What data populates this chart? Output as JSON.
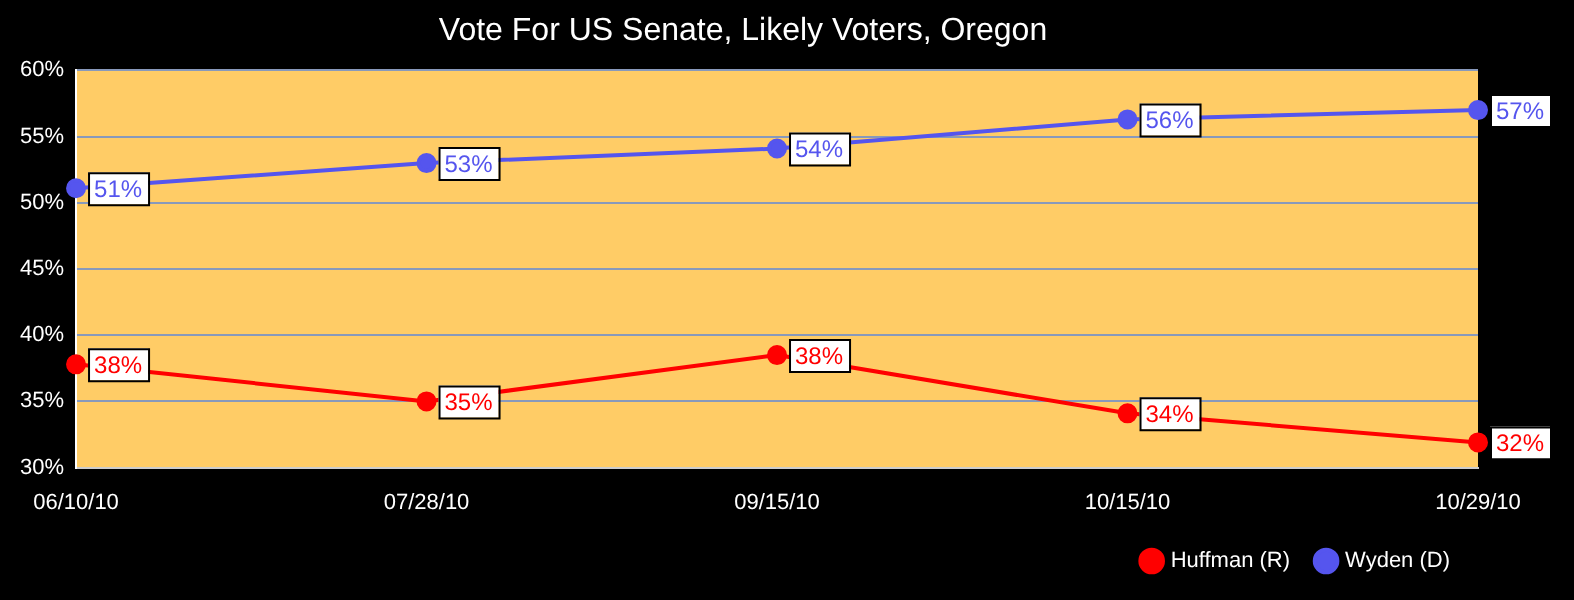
{
  "chart_data": {
    "type": "line",
    "title": "Vote For US Senate, Likely Voters, Oregon",
    "categories": [
      "06/10/10",
      "07/28/10",
      "09/15/10",
      "10/15/10",
      "10/29/10"
    ],
    "series": [
      {
        "name": "Huffman (R)",
        "color": "#ff0000",
        "values": [
          37.8,
          35.0,
          38.5,
          34.1,
          31.9
        ],
        "value_labels": [
          "38%",
          "35%",
          "38%",
          "34%",
          "32%"
        ]
      },
      {
        "name": "Wyden (D)",
        "color": "#5555ee",
        "values": [
          51.1,
          53.0,
          54.1,
          56.3,
          57.0
        ],
        "value_labels": [
          "51%",
          "53%",
          "54%",
          "56%",
          "57%"
        ]
      }
    ],
    "ylim": [
      30,
      60
    ],
    "yticks": [
      {
        "value": 30,
        "label": "30%"
      },
      {
        "value": 35,
        "label": "35%"
      },
      {
        "value": 40,
        "label": "40%"
      },
      {
        "value": 45,
        "label": "45%"
      },
      {
        "value": 50,
        "label": "50%"
      },
      {
        "value": 55,
        "label": "55%"
      },
      {
        "value": 60,
        "label": "60%"
      }
    ],
    "grid": "y",
    "legend": "bottom right",
    "marker": "circle",
    "line_style": "solid"
  }
}
